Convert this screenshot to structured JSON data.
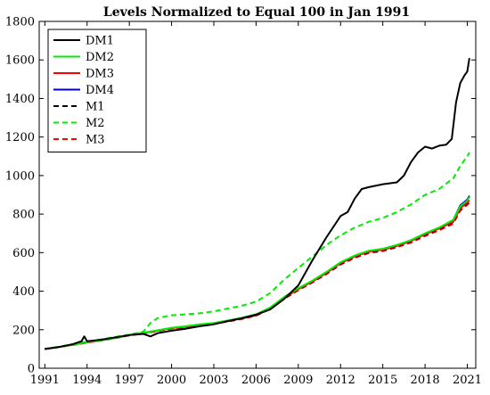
{
  "chart_data": {
    "type": "line",
    "title": "Levels Normalized to Equal 100 in Jan 1991",
    "xlabel": "",
    "ylabel": "",
    "xlim": [
      1990.6,
      2021.6
    ],
    "ylim": [
      0,
      1800
    ],
    "xticks": [
      1991,
      1994,
      1997,
      2000,
      2003,
      2006,
      2009,
      2012,
      2015,
      2018,
      2021
    ],
    "yticks": [
      0,
      200,
      400,
      600,
      800,
      1000,
      1200,
      1400,
      1600,
      1800
    ],
    "grid": false,
    "legend_position": "top-left",
    "series": [
      {
        "name": "DM1",
        "color": "#000000",
        "dash": "solid",
        "points": [
          [
            1991,
            100
          ],
          [
            1992,
            110
          ],
          [
            1993,
            125
          ],
          [
            1993.6,
            140
          ],
          [
            1993.8,
            165
          ],
          [
            1994,
            140
          ],
          [
            1995,
            148
          ],
          [
            1996,
            160
          ],
          [
            1997,
            172
          ],
          [
            1998,
            178
          ],
          [
            1998.5,
            165
          ],
          [
            1999,
            182
          ],
          [
            2000,
            195
          ],
          [
            2001,
            205
          ],
          [
            2002,
            218
          ],
          [
            2003,
            228
          ],
          [
            2004,
            245
          ],
          [
            2005,
            260
          ],
          [
            2006,
            278
          ],
          [
            2007,
            305
          ],
          [
            2008,
            360
          ],
          [
            2009,
            430
          ],
          [
            2010,
            560
          ],
          [
            2011,
            680
          ],
          [
            2012,
            790
          ],
          [
            2012.5,
            810
          ],
          [
            2013,
            880
          ],
          [
            2013.5,
            930
          ],
          [
            2014,
            940
          ],
          [
            2015,
            955
          ],
          [
            2016,
            965
          ],
          [
            2016.5,
            1000
          ],
          [
            2017,
            1070
          ],
          [
            2017.5,
            1120
          ],
          [
            2018,
            1150
          ],
          [
            2018.5,
            1140
          ],
          [
            2019,
            1155
          ],
          [
            2019.5,
            1160
          ],
          [
            2019.9,
            1190
          ],
          [
            2020.2,
            1380
          ],
          [
            2020.5,
            1480
          ],
          [
            2020.8,
            1520
          ],
          [
            2021,
            1540
          ],
          [
            2021.15,
            1610
          ]
        ]
      },
      {
        "name": "DM2",
        "color": "#00ee00",
        "dash": "solid",
        "points": [
          [
            1991,
            100
          ],
          [
            1992,
            110
          ],
          [
            1993,
            122
          ],
          [
            1994,
            135
          ],
          [
            1995,
            145
          ],
          [
            1996,
            158
          ],
          [
            1997,
            172
          ],
          [
            1998,
            185
          ],
          [
            1999,
            196
          ],
          [
            2000,
            210
          ],
          [
            2001,
            218
          ],
          [
            2002,
            228
          ],
          [
            2003,
            235
          ],
          [
            2004,
            248
          ],
          [
            2005,
            262
          ],
          [
            2006,
            280
          ],
          [
            2007,
            315
          ],
          [
            2008,
            370
          ],
          [
            2009,
            415
          ],
          [
            2010,
            455
          ],
          [
            2011,
            500
          ],
          [
            2012,
            550
          ],
          [
            2013,
            585
          ],
          [
            2014,
            610
          ],
          [
            2015,
            620
          ],
          [
            2016,
            640
          ],
          [
            2017,
            665
          ],
          [
            2018,
            700
          ],
          [
            2019,
            730
          ],
          [
            2020,
            770
          ],
          [
            2020.5,
            840
          ],
          [
            2021,
            870
          ],
          [
            2021.15,
            890
          ]
        ]
      },
      {
        "name": "DM3",
        "color": "#ff0000",
        "dash": "solid",
        "points": [
          [
            1991,
            100
          ],
          [
            1992,
            110
          ],
          [
            1993,
            122
          ],
          [
            1994,
            135
          ],
          [
            1995,
            145
          ],
          [
            1996,
            158
          ],
          [
            1997,
            172
          ],
          [
            1998,
            183
          ],
          [
            1999,
            195
          ],
          [
            2000,
            208
          ],
          [
            2001,
            215
          ],
          [
            2002,
            225
          ],
          [
            2003,
            232
          ],
          [
            2004,
            245
          ],
          [
            2005,
            258
          ],
          [
            2006,
            275
          ],
          [
            2007,
            310
          ],
          [
            2008,
            365
          ],
          [
            2009,
            410
          ],
          [
            2010,
            450
          ],
          [
            2011,
            495
          ],
          [
            2012,
            545
          ],
          [
            2013,
            580
          ],
          [
            2014,
            605
          ],
          [
            2015,
            615
          ],
          [
            2016,
            635
          ],
          [
            2017,
            660
          ],
          [
            2018,
            695
          ],
          [
            2019,
            725
          ],
          [
            2020,
            760
          ],
          [
            2020.5,
            830
          ],
          [
            2021,
            860
          ],
          [
            2021.15,
            872
          ]
        ]
      },
      {
        "name": "DM4",
        "color": "#0000cc",
        "dash": "solid",
        "points": [
          [
            1991,
            100
          ],
          [
            1992,
            110
          ],
          [
            1993,
            122
          ],
          [
            1994,
            135
          ],
          [
            1995,
            145
          ],
          [
            1996,
            158
          ],
          [
            1997,
            172
          ],
          [
            1998,
            184
          ],
          [
            1999,
            196
          ],
          [
            2000,
            209
          ],
          [
            2001,
            216
          ],
          [
            2002,
            226
          ],
          [
            2003,
            233
          ],
          [
            2004,
            246
          ],
          [
            2005,
            260
          ],
          [
            2006,
            277
          ],
          [
            2007,
            312
          ],
          [
            2008,
            368
          ],
          [
            2009,
            412
          ],
          [
            2010,
            452
          ],
          [
            2011,
            498
          ],
          [
            2012,
            548
          ],
          [
            2013,
            583
          ],
          [
            2014,
            608
          ],
          [
            2015,
            618
          ],
          [
            2016,
            638
          ],
          [
            2017,
            663
          ],
          [
            2018,
            698
          ],
          [
            2019,
            728
          ],
          [
            2020,
            768
          ],
          [
            2020.5,
            845
          ],
          [
            2021,
            875
          ],
          [
            2021.15,
            895
          ]
        ]
      },
      {
        "name": "M1",
        "color": "#000000",
        "dash": "dashed",
        "points": [
          [
            1991,
            100
          ],
          [
            1992,
            110
          ],
          [
            1993,
            122
          ],
          [
            1994,
            135
          ],
          [
            1995,
            145
          ],
          [
            1996,
            158
          ],
          [
            1997,
            171
          ],
          [
            1998,
            182
          ],
          [
            1999,
            194
          ],
          [
            2000,
            207
          ],
          [
            2001,
            214
          ],
          [
            2002,
            224
          ],
          [
            2003,
            231
          ],
          [
            2004,
            244
          ],
          [
            2005,
            257
          ],
          [
            2006,
            274
          ],
          [
            2007,
            309
          ],
          [
            2008,
            363
          ],
          [
            2009,
            408
          ],
          [
            2010,
            448
          ],
          [
            2011,
            492
          ],
          [
            2012,
            542
          ],
          [
            2013,
            577
          ],
          [
            2014,
            602
          ],
          [
            2015,
            612
          ],
          [
            2016,
            632
          ],
          [
            2017,
            657
          ],
          [
            2018,
            692
          ],
          [
            2019,
            722
          ],
          [
            2020,
            757
          ],
          [
            2020.5,
            826
          ],
          [
            2021,
            856
          ],
          [
            2021.15,
            868
          ]
        ]
      },
      {
        "name": "M2",
        "color": "#00ee00",
        "dash": "dashed",
        "points": [
          [
            1991,
            100
          ],
          [
            1992,
            112
          ],
          [
            1993,
            125
          ],
          [
            1994,
            138
          ],
          [
            1995,
            150
          ],
          [
            1996,
            163
          ],
          [
            1997,
            175
          ],
          [
            1998,
            190
          ],
          [
            1998.5,
            235
          ],
          [
            1999,
            260
          ],
          [
            2000,
            275
          ],
          [
            2001,
            280
          ],
          [
            2002,
            285
          ],
          [
            2003,
            295
          ],
          [
            2004,
            310
          ],
          [
            2005,
            325
          ],
          [
            2006,
            345
          ],
          [
            2007,
            390
          ],
          [
            2008,
            460
          ],
          [
            2009,
            520
          ],
          [
            2010,
            580
          ],
          [
            2011,
            640
          ],
          [
            2012,
            690
          ],
          [
            2013,
            730
          ],
          [
            2014,
            760
          ],
          [
            2015,
            780
          ],
          [
            2016,
            810
          ],
          [
            2017,
            850
          ],
          [
            2018,
            900
          ],
          [
            2019,
            930
          ],
          [
            2020,
            985
          ],
          [
            2020.5,
            1050
          ],
          [
            2021,
            1100
          ],
          [
            2021.15,
            1120
          ]
        ]
      },
      {
        "name": "M3",
        "color": "#ff0000",
        "dash": "dashed",
        "points": [
          [
            1991,
            100
          ],
          [
            1992,
            110
          ],
          [
            1993,
            121
          ],
          [
            1994,
            133
          ],
          [
            1995,
            144
          ],
          [
            1996,
            156
          ],
          [
            1997,
            170
          ],
          [
            1998,
            181
          ],
          [
            1999,
            193
          ],
          [
            2000,
            206
          ],
          [
            2001,
            213
          ],
          [
            2002,
            223
          ],
          [
            2003,
            230
          ],
          [
            2004,
            243
          ],
          [
            2005,
            256
          ],
          [
            2006,
            273
          ],
          [
            2007,
            307
          ],
          [
            2008,
            360
          ],
          [
            2009,
            405
          ],
          [
            2010,
            445
          ],
          [
            2011,
            489
          ],
          [
            2012,
            538
          ],
          [
            2013,
            573
          ],
          [
            2014,
            598
          ],
          [
            2015,
            608
          ],
          [
            2016,
            628
          ],
          [
            2017,
            652
          ],
          [
            2018,
            686
          ],
          [
            2019,
            716
          ],
          [
            2020,
            750
          ],
          [
            2020.5,
            818
          ],
          [
            2021,
            848
          ],
          [
            2021.15,
            860
          ]
        ]
      }
    ]
  }
}
